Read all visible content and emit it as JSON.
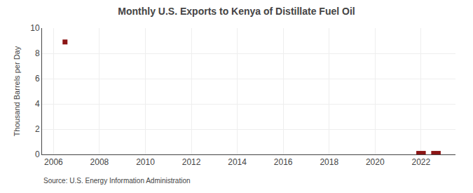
{
  "chart_data": {
    "type": "scatter",
    "title": "Monthly U.S. Exports to Kenya of Distillate Fuel Oil",
    "ylabel": "Thousand Barrels per Day",
    "annotations": [
      "Source: U.S. Energy Information Administration"
    ],
    "x": [
      2006.5,
      2021.9,
      2022.1,
      2022.55,
      2022.75
    ],
    "values": [
      8.9,
      0.08,
      0.08,
      0.08,
      0.08
    ],
    "color": "#8b1515",
    "marker": "square",
    "xlim": [
      2005.5,
      2023.5
    ],
    "xticks": [
      2006,
      2008,
      2010,
      2012,
      2014,
      2016,
      2018,
      2020,
      2022
    ],
    "ylim": [
      0,
      10
    ],
    "yticks": [
      0,
      2,
      4,
      6,
      8,
      10
    ],
    "grid": true
  }
}
